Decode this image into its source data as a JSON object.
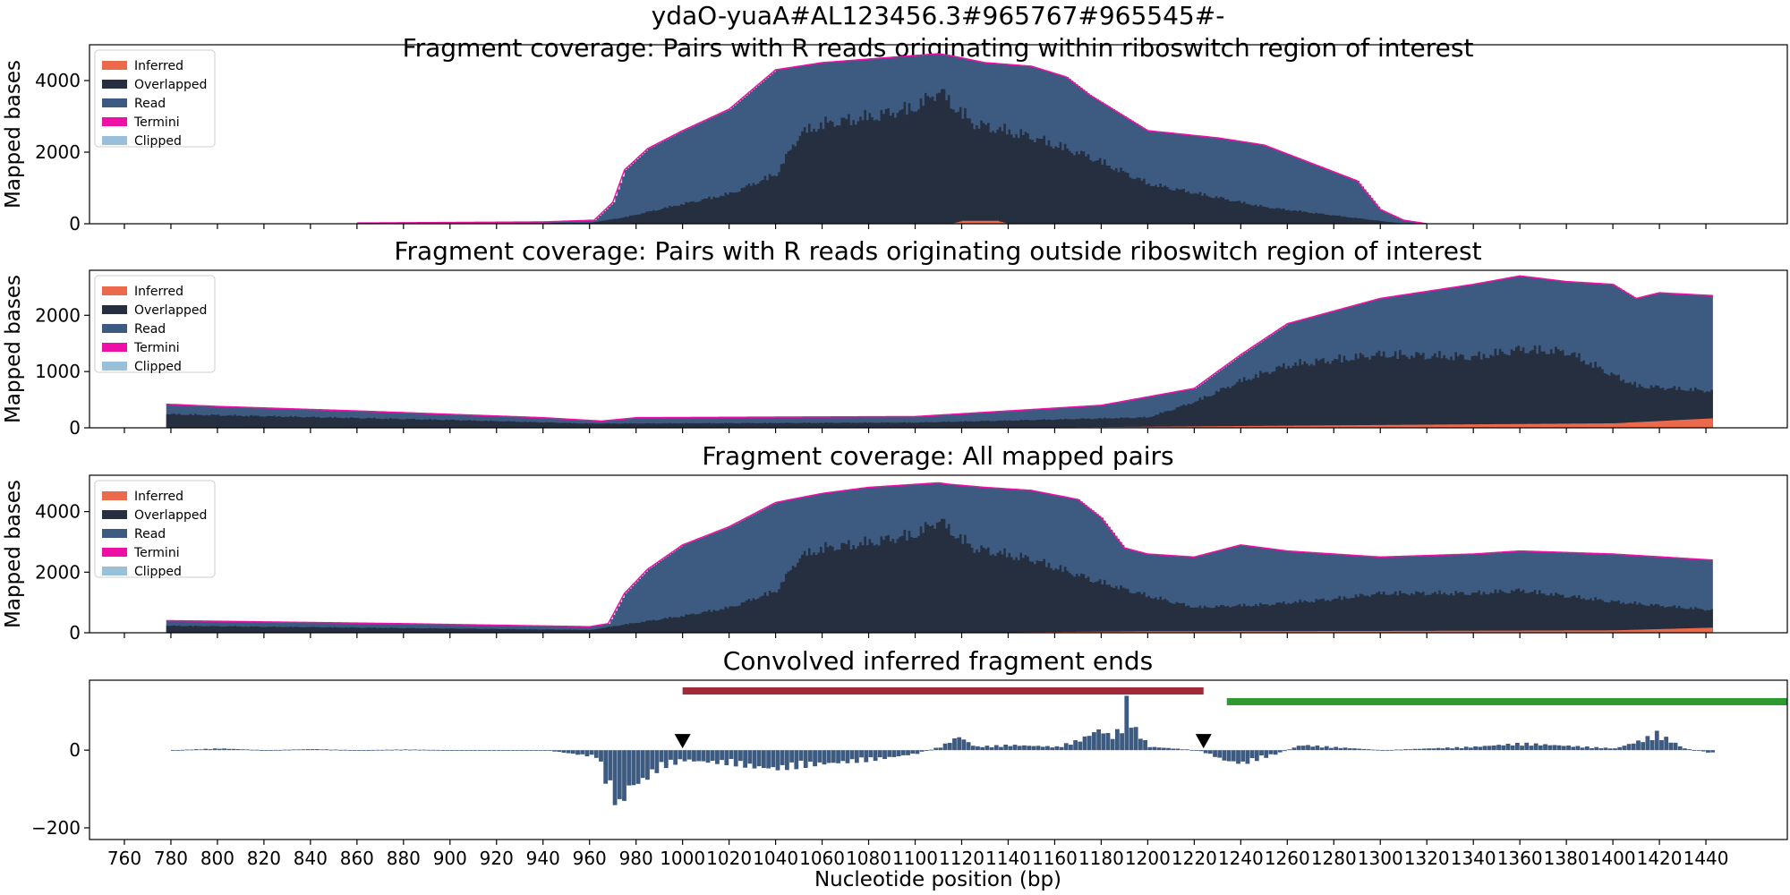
{
  "figure": {
    "suptitle": "ydaO-yuaA#AL123456.3#965767#965545#-",
    "xlabel": "Nucleotide position (bp)",
    "ylabel": "Mapped bases"
  },
  "colors": {
    "Inferred": "#eb6a4b",
    "Overlapped": "#262f40",
    "Read": "#3d5a80",
    "Termini": "#ee0fa7",
    "Clipped": "#98c1d9",
    "bar_red": "#9e2a3a",
    "bar_green": "#2f9a2f",
    "marker": "#000000"
  },
  "chart_data": [
    {
      "type": "area",
      "title": "Fragment coverage: Pairs with R reads originating within riboswitch region of interest",
      "ylabel": "Mapped bases",
      "xlim": [
        745,
        1475
      ],
      "ylim": [
        0,
        5000
      ],
      "yticks": [
        0,
        2000,
        4000
      ],
      "legend": [
        "Inferred",
        "Overlapped",
        "Read",
        "Termini",
        "Clipped"
      ],
      "legend_position": "top-left",
      "series": [
        {
          "name": "Read",
          "x": [
            860,
            940,
            962,
            970,
            975,
            985,
            1000,
            1020,
            1040,
            1060,
            1080,
            1100,
            1110,
            1115,
            1130,
            1150,
            1165,
            1175,
            1190,
            1200,
            1230,
            1250,
            1270,
            1290,
            1300,
            1310,
            1320
          ],
          "values": [
            20,
            50,
            100,
            600,
            1500,
            2100,
            2600,
            3200,
            4300,
            4500,
            4600,
            4700,
            4750,
            4700,
            4500,
            4400,
            4100,
            3600,
            3000,
            2600,
            2400,
            2200,
            1700,
            1200,
            400,
            100,
            0
          ]
        },
        {
          "name": "Overlapped",
          "x": [
            860,
            960,
            975,
            1000,
            1020,
            1040,
            1050,
            1060,
            1080,
            1100,
            1110,
            1115,
            1125,
            1150,
            1175,
            1200,
            1250,
            1300,
            1310
          ],
          "values": [
            10,
            30,
            200,
            600,
            900,
            1500,
            2700,
            3000,
            3200,
            3500,
            4000,
            3600,
            3000,
            2600,
            2000,
            1200,
            500,
            80,
            0
          ]
        },
        {
          "name": "Inferred",
          "x": [
            1115,
            1120,
            1135,
            1140
          ],
          "values": [
            0,
            80,
            80,
            0
          ]
        }
      ]
    },
    {
      "type": "area",
      "title": "Fragment coverage: Pairs with R reads originating outside riboswitch region of interest",
      "ylabel": "Mapped bases",
      "xlim": [
        745,
        1475
      ],
      "ylim": [
        0,
        2800
      ],
      "yticks": [
        0,
        1000,
        2000
      ],
      "legend": [
        "Inferred",
        "Overlapped",
        "Read",
        "Termini",
        "Clipped"
      ],
      "legend_position": "top-left",
      "series": [
        {
          "name": "Read",
          "x": [
            778,
            800,
            860,
            940,
            965,
            980,
            1100,
            1180,
            1220,
            1240,
            1260,
            1300,
            1340,
            1360,
            1380,
            1400,
            1410,
            1420,
            1443
          ],
          "values": [
            420,
            380,
            300,
            180,
            120,
            180,
            200,
            400,
            700,
            1300,
            1850,
            2300,
            2550,
            2700,
            2600,
            2550,
            2300,
            2400,
            2350
          ]
        },
        {
          "name": "Overlapped",
          "x": [
            778,
            800,
            900,
            960,
            1100,
            1200,
            1220,
            1240,
            1260,
            1300,
            1340,
            1360,
            1380,
            1400,
            1410,
            1443
          ],
          "values": [
            260,
            240,
            150,
            80,
            100,
            200,
            500,
            900,
            1200,
            1400,
            1350,
            1500,
            1450,
            1000,
            800,
            700
          ]
        },
        {
          "name": "Inferred",
          "x": [
            1130,
            1200,
            1300,
            1400,
            1443
          ],
          "values": [
            0,
            20,
            50,
            80,
            170
          ]
        }
      ]
    },
    {
      "type": "area",
      "title": "Fragment coverage: All mapped pairs",
      "ylabel": "Mapped bases",
      "xlim": [
        745,
        1475
      ],
      "ylim": [
        0,
        5200
      ],
      "yticks": [
        0,
        2000,
        4000
      ],
      "legend": [
        "Inferred",
        "Overlapped",
        "Read",
        "Termini",
        "Clipped"
      ],
      "legend_position": "top-left",
      "series": [
        {
          "name": "Read",
          "x": [
            778,
            800,
            880,
            960,
            968,
            975,
            985,
            1000,
            1020,
            1040,
            1060,
            1080,
            1100,
            1110,
            1115,
            1130,
            1150,
            1170,
            1180,
            1190,
            1200,
            1220,
            1240,
            1260,
            1300,
            1340,
            1360,
            1400,
            1443
          ],
          "values": [
            400,
            380,
            300,
            200,
            300,
            1300,
            2100,
            2900,
            3500,
            4300,
            4600,
            4800,
            4900,
            4950,
            4900,
            4800,
            4700,
            4400,
            3800,
            2800,
            2600,
            2500,
            2900,
            2700,
            2500,
            2600,
            2700,
            2600,
            2400
          ]
        },
        {
          "name": "Overlapped",
          "x": [
            778,
            800,
            900,
            960,
            975,
            1000,
            1020,
            1040,
            1050,
            1060,
            1080,
            1100,
            1110,
            1115,
            1125,
            1150,
            1175,
            1200,
            1220,
            1250,
            1280,
            1300,
            1340,
            1360,
            1400,
            1443
          ],
          "values": [
            250,
            230,
            150,
            100,
            300,
            600,
            900,
            1500,
            2700,
            3000,
            3200,
            3500,
            4000,
            3600,
            3000,
            2600,
            1900,
            1300,
            900,
            1000,
            1200,
            1400,
            1400,
            1500,
            1100,
            800
          ]
        },
        {
          "name": "Inferred",
          "x": [
            1115,
            1200,
            1300,
            1400,
            1443
          ],
          "values": [
            0,
            50,
            60,
            80,
            170
          ]
        }
      ]
    },
    {
      "type": "bar",
      "title": "Convolved inferred fragment ends",
      "xlabel": "Nucleotide position (bp)",
      "xlim": [
        745,
        1475
      ],
      "ylim": [
        -230,
        180
      ],
      "yticks": [
        -200,
        0
      ],
      "xticks": [
        760,
        780,
        800,
        820,
        840,
        860,
        880,
        900,
        920,
        940,
        960,
        980,
        1000,
        1020,
        1040,
        1060,
        1080,
        1100,
        1120,
        1140,
        1160,
        1180,
        1200,
        1220,
        1240,
        1260,
        1280,
        1300,
        1320,
        1340,
        1360,
        1380,
        1400,
        1420,
        1440
      ],
      "profile": {
        "x": [
          780,
          800,
          820,
          840,
          860,
          880,
          900,
          940,
          962,
          968,
          972,
          976,
          982,
          990,
          1000,
          1020,
          1030,
          1040,
          1060,
          1080,
          1100,
          1110,
          1118,
          1125,
          1140,
          1160,
          1170,
          1178,
          1184,
          1188,
          1190,
          1194,
          1200,
          1210,
          1220,
          1225,
          1232,
          1240,
          1255,
          1265,
          1300,
          1340,
          1360,
          1400,
          1412,
          1418,
          1430,
          1443
        ],
        "values": [
          0,
          5,
          0,
          3,
          0,
          2,
          0,
          0,
          -20,
          -120,
          -170,
          -110,
          -90,
          -50,
          -30,
          -40,
          -50,
          -55,
          -40,
          -30,
          -10,
          10,
          40,
          10,
          15,
          10,
          30,
          60,
          40,
          70,
          140,
          60,
          10,
          5,
          0,
          -10,
          -30,
          -40,
          -10,
          15,
          0,
          10,
          20,
          5,
          30,
          50,
          5,
          -10
        ]
      },
      "segments": [
        {
          "color": "red",
          "x": [
            1000,
            1224
          ]
        },
        {
          "color": "green",
          "x": [
            1234,
            1475
          ]
        }
      ],
      "markers": [
        1000,
        1224
      ]
    }
  ]
}
